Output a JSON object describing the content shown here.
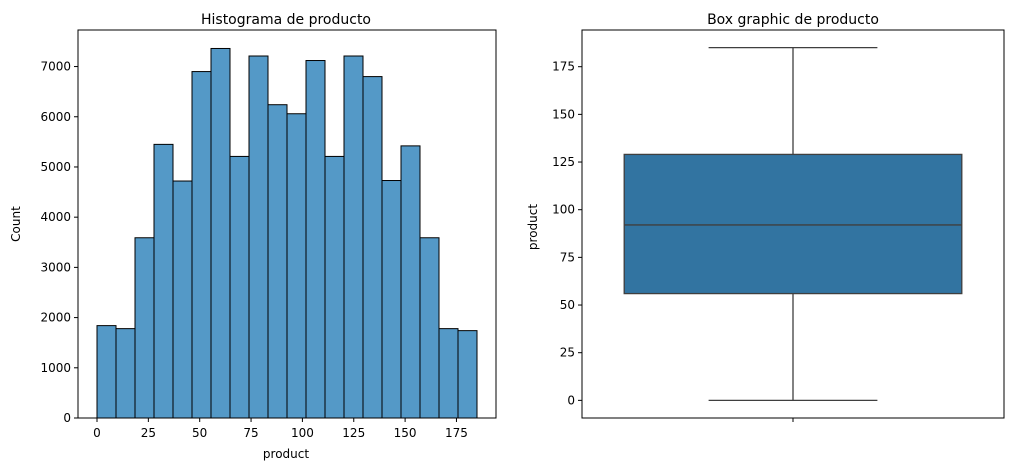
{
  "chart_data": [
    {
      "type": "bar",
      "title": "Histograma de producto",
      "xlabel": "product",
      "ylabel": "Count",
      "bar_color": "#5499c7",
      "edge_color": "#000000",
      "bins": [
        {
          "start": 0,
          "end": 9.25,
          "count": 1840
        },
        {
          "start": 9.25,
          "end": 18.5,
          "count": 1780
        },
        {
          "start": 18.5,
          "end": 27.75,
          "count": 3590
        },
        {
          "start": 27.75,
          "end": 37,
          "count": 5450
        },
        {
          "start": 37,
          "end": 46.25,
          "count": 4720
        },
        {
          "start": 46.25,
          "end": 55.5,
          "count": 6900
        },
        {
          "start": 55.5,
          "end": 64.75,
          "count": 7360
        },
        {
          "start": 64.75,
          "end": 74,
          "count": 5210
        },
        {
          "start": 74,
          "end": 83.25,
          "count": 7210
        },
        {
          "start": 83.25,
          "end": 92.5,
          "count": 6240
        },
        {
          "start": 92.5,
          "end": 101.75,
          "count": 6060
        },
        {
          "start": 101.75,
          "end": 111,
          "count": 7120
        },
        {
          "start": 111,
          "end": 120.25,
          "count": 5210
        },
        {
          "start": 120.25,
          "end": 129.5,
          "count": 7210
        },
        {
          "start": 129.5,
          "end": 138.75,
          "count": 6800
        },
        {
          "start": 138.75,
          "end": 148,
          "count": 4730
        },
        {
          "start": 148,
          "end": 157.25,
          "count": 5420
        },
        {
          "start": 157.25,
          "end": 166.5,
          "count": 3590
        },
        {
          "start": 166.5,
          "end": 175.75,
          "count": 1780
        },
        {
          "start": 175.75,
          "end": 185,
          "count": 1740
        }
      ],
      "xlim": [
        -9.25,
        194.25
      ],
      "ylim": [
        0,
        7728
      ],
      "xticks": [
        "0",
        "25",
        "50",
        "75",
        "100",
        "125",
        "150",
        "175"
      ],
      "yticks": [
        "0",
        "1000",
        "2000",
        "3000",
        "4000",
        "5000",
        "6000",
        "7000"
      ],
      "grid": false
    },
    {
      "type": "box",
      "title": "Box graphic de producto",
      "xlabel": "",
      "ylabel": "product",
      "box_color": "#3274a1",
      "line_color": "#3f3f3f",
      "stats": {
        "min": 0,
        "q1": 56,
        "median": 92,
        "q3": 129,
        "max": 185
      },
      "ylim": [
        -9.25,
        194.25
      ],
      "yticks": [
        "0",
        "25",
        "50",
        "75",
        "100",
        "125",
        "150",
        "175"
      ],
      "xticks": [
        ""
      ],
      "grid": false
    }
  ]
}
